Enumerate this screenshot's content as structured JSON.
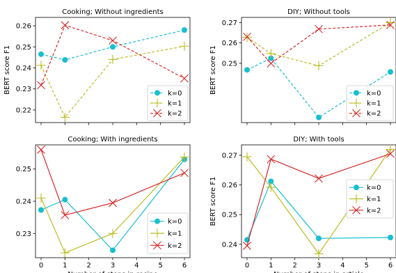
{
  "chart_data": [
    {
      "type": "line",
      "title": "Cooking; Without ingredients",
      "xlabel": "",
      "ylabel": "BERT score F1",
      "x": [
        0,
        1,
        3,
        6
      ],
      "xticks": [
        0,
        1,
        2,
        3,
        4,
        5,
        6
      ],
      "yticks": [
        0.22,
        0.23,
        0.24,
        0.25,
        0.26
      ],
      "ylim": [
        0.214,
        0.264
      ],
      "legend_loc": "lower-right",
      "series": [
        {
          "name": "k=0",
          "values": [
            0.2465,
            0.2438,
            0.25,
            0.258
          ],
          "color": "#17becf",
          "dash": "dashed",
          "marker": "circle"
        },
        {
          "name": "k=1",
          "values": [
            0.2412,
            0.2165,
            0.244,
            0.2503
          ],
          "color": "#bcbd22",
          "dash": "dashed",
          "marker": "plus"
        },
        {
          "name": "k=2",
          "values": [
            0.2318,
            0.2603,
            0.253,
            0.235
          ],
          "color": "#d62728",
          "dash": "dashed",
          "marker": "x"
        }
      ]
    },
    {
      "type": "line",
      "title": "DIY; Without tools",
      "xlabel": "",
      "ylabel": "BERT score F1",
      "x": [
        0,
        1,
        3,
        6
      ],
      "xticks": [
        0,
        1,
        2,
        3,
        4,
        5,
        6
      ],
      "yticks": [
        0.25,
        0.26,
        0.27
      ],
      "ylim": [
        0.221,
        0.2725
      ],
      "legend_loc": "lower-right",
      "series": [
        {
          "name": "k=0",
          "values": [
            0.2468,
            0.2525,
            0.2235,
            0.2458
          ],
          "color": "#17becf",
          "dash": "dashed",
          "marker": "circle"
        },
        {
          "name": "k=1",
          "values": [
            0.2628,
            0.2548,
            0.2488,
            0.27
          ],
          "color": "#bcbd22",
          "dash": "dashed",
          "marker": "plus"
        },
        {
          "name": "k=2",
          "values": [
            0.263,
            0.25,
            0.2668,
            0.2688
          ],
          "color": "#d62728",
          "dash": "dashed",
          "marker": "x"
        }
      ]
    },
    {
      "type": "line",
      "title": "Cooking; With ingredients",
      "xlabel": "Number of steps in recipe",
      "ylabel": "",
      "x": [
        0,
        1,
        3,
        6
      ],
      "xticks": [
        0,
        1,
        2,
        3,
        4,
        5,
        6
      ],
      "yticks": [
        0.23,
        0.24,
        0.25
      ],
      "ylim": [
        0.2225,
        0.2575
      ],
      "legend_loc": "lower-right",
      "series": [
        {
          "name": "k=0",
          "values": [
            0.2373,
            0.2405,
            0.2248,
            0.253
          ],
          "color": "#17becf",
          "dash": "solid",
          "marker": "circle"
        },
        {
          "name": "k=1",
          "values": [
            0.241,
            0.224,
            0.23,
            0.2537
          ],
          "color": "#bcbd22",
          "dash": "solid",
          "marker": "plus"
        },
        {
          "name": "k=2",
          "values": [
            0.256,
            0.2357,
            0.2395,
            0.2488
          ],
          "color": "#d62728",
          "dash": "solid",
          "marker": "x"
        }
      ]
    },
    {
      "type": "line",
      "title": "DIY; With tools",
      "xlabel": "Number of steps in article",
      "ylabel": "BERT score F1",
      "x": [
        0,
        1,
        3,
        6
      ],
      "xticks": [
        0,
        1,
        2,
        3,
        4,
        5,
        6
      ],
      "yticks": [
        0.24,
        0.25,
        0.26,
        0.27
      ],
      "ylim": [
        0.2355,
        0.2735
      ],
      "legend_loc": "center-right",
      "series": [
        {
          "name": "k=0",
          "values": [
            0.2415,
            0.2612,
            0.242,
            0.2423
          ],
          "color": "#17becf",
          "dash": "solid",
          "marker": "circle"
        },
        {
          "name": "k=1",
          "values": [
            0.2695,
            0.2592,
            0.2368,
            0.272
          ],
          "color": "#bcbd22",
          "dash": "solid",
          "marker": "plus"
        },
        {
          "name": "k=2",
          "values": [
            0.2395,
            0.2687,
            0.2622,
            0.2705
          ],
          "color": "#d62728",
          "dash": "solid",
          "marker": "x"
        }
      ]
    }
  ]
}
